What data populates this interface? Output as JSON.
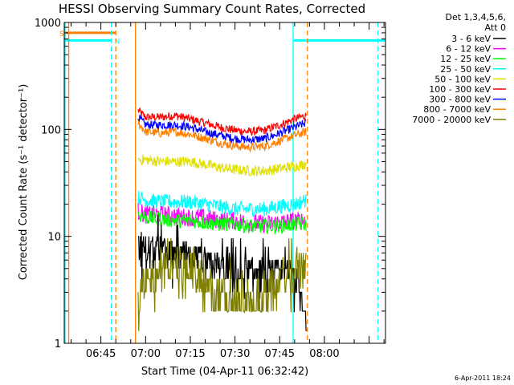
{
  "chart_data": {
    "type": "line",
    "title": "HESSI Observing Summary Count Rates, Corrected",
    "xlabel": "Start Time (04-Apr-11 06:32:42)",
    "ylabel": "Corrected Count Rate (s⁻¹ detector⁻¹)",
    "y_scale": "log",
    "ylim": [
      1,
      1000
    ],
    "y_ticks": [
      1,
      10,
      100,
      1000
    ],
    "y_tick_labels": [
      "1",
      "10",
      "100",
      "1000"
    ],
    "x_ticks_min": [
      45,
      60,
      75,
      90,
      105,
      120
    ],
    "x_tick_labels": [
      "06:45",
      "07:00",
      "07:15",
      "07:30",
      "07:45",
      "08:00"
    ],
    "xlim_min": [
      32.7,
      140.5
    ],
    "grid": false,
    "legend": {
      "placement": "right",
      "header": [
        "Det 1,3,4,5,6,",
        "Att 0"
      ],
      "entries": [
        {
          "name": "3 - 6 keV",
          "color": "#000000"
        },
        {
          "name": "6 - 12 keV",
          "color": "#ff00ff"
        },
        {
          "name": "12 - 25 keV",
          "color": "#00ff00"
        },
        {
          "name": "25 - 50 keV",
          "color": "#00ffff"
        },
        {
          "name": "50 - 100 keV",
          "color": "#e0e000"
        },
        {
          "name": "100 - 300 keV",
          "color": "#ff0000"
        },
        {
          "name": "300 - 800 keV",
          "color": "#0000ff"
        },
        {
          "name": "800 - 7000 keV",
          "color": "#ff8000"
        },
        {
          "name": "7000 - 20000 keV",
          "color": "#808000"
        }
      ]
    },
    "series": [
      {
        "name": "100 - 300 keV",
        "color": "#ff0000",
        "x": [
          57.5,
          60,
          65,
          70,
          75,
          80,
          85,
          90,
          95,
          100,
          105,
          110,
          114
        ],
        "y": [
          150,
          130,
          130,
          135,
          125,
          115,
          105,
          98,
          95,
          98,
          110,
          125,
          135
        ],
        "noise": 0.08
      },
      {
        "name": "300 - 800 keV",
        "color": "#0000ff",
        "x": [
          57.5,
          60,
          65,
          70,
          75,
          80,
          85,
          90,
          95,
          100,
          105,
          110,
          114
        ],
        "y": [
          130,
          110,
          110,
          110,
          105,
          95,
          88,
          82,
          80,
          82,
          92,
          105,
          115
        ],
        "noise": 0.08
      },
      {
        "name": "800 - 7000 keV",
        "color": "#ff8000",
        "x": [
          57.5,
          60,
          65,
          70,
          75,
          80,
          85,
          90,
          95,
          100,
          105,
          110,
          114
        ],
        "y": [
          115,
          95,
          92,
          95,
          90,
          82,
          75,
          70,
          68,
          70,
          78,
          88,
          95
        ],
        "noise": 0.08
      },
      {
        "name": "50 - 100 keV",
        "color": "#e0e000",
        "x": [
          57.5,
          60,
          65,
          70,
          75,
          80,
          85,
          90,
          95,
          100,
          105,
          110,
          114
        ],
        "y": [
          52,
          52,
          50,
          50,
          50,
          47,
          44,
          42,
          41,
          41,
          43,
          45,
          48
        ],
        "noise": 0.1
      },
      {
        "name": "25 - 50 keV",
        "color": "#00ffff",
        "x": [
          57.5,
          60,
          65,
          70,
          75,
          80,
          85,
          90,
          95,
          100,
          105,
          110,
          114
        ],
        "y": [
          23,
          22,
          21,
          21,
          21,
          20,
          19,
          18,
          18,
          18,
          19,
          20,
          22
        ],
        "noise": 0.14
      },
      {
        "name": "6 - 12 keV",
        "color": "#ff00ff",
        "x": [
          57.5,
          60,
          65,
          70,
          75,
          80,
          85,
          90,
          95,
          100,
          105,
          110,
          114
        ],
        "y": [
          17,
          16,
          16,
          15.5,
          15,
          15,
          14,
          14,
          13.5,
          13,
          13.5,
          14,
          14
        ],
        "noise": 0.17
      },
      {
        "name": "12 - 25 keV",
        "color": "#00ff00",
        "x": [
          57.5,
          60,
          65,
          70,
          75,
          80,
          85,
          90,
          95,
          100,
          105,
          110,
          114
        ],
        "y": [
          16,
          15,
          14.5,
          14,
          14,
          13.5,
          13,
          13,
          12.5,
          12.5,
          12.5,
          13,
          13
        ],
        "noise": 0.14
      },
      {
        "name": "3 - 6 keV",
        "color": "#000000",
        "x": [
          57.5,
          60,
          65,
          70,
          75,
          80,
          85,
          90,
          95,
          100,
          105,
          110,
          112,
          114
        ],
        "y": [
          8,
          7.5,
          7,
          6.5,
          6,
          5.5,
          5,
          4.5,
          4.5,
          4.5,
          4.5,
          4.5,
          3,
          2
        ],
        "noise": 0.3
      },
      {
        "name": "7000 - 20000 keV",
        "color": "#808000",
        "x": [
          57.5,
          60,
          65,
          70,
          75,
          80,
          85,
          90,
          95,
          100,
          105,
          110,
          114
        ],
        "y": [
          2.5,
          3.5,
          5,
          5.5,
          5,
          3.5,
          2.8,
          2.5,
          2.5,
          2.8,
          3.5,
          4.5,
          5.5
        ],
        "noise": 0.35
      }
    ],
    "flag_bars": [
      {
        "label": "S",
        "color": "#ff8000",
        "x_min": [
          32.7,
          50
        ],
        "y": 800
      },
      {
        "label": "N",
        "color": "#00ffff",
        "x_min": [
          32.7,
          48.5
        ],
        "y": 680
      },
      {
        "label": "",
        "color": "#00ffff",
        "x_min": [
          109.5,
          140.5
        ],
        "y": 680
      }
    ],
    "vlines": [
      {
        "x_min": 33.0,
        "color": "#00ffff",
        "style": "solid"
      },
      {
        "x_min": 34.2,
        "color": "#ff8000",
        "style": "solid"
      },
      {
        "x_min": 48.5,
        "color": "#00ffff",
        "style": "dashed"
      },
      {
        "x_min": 50.0,
        "color": "#ff8000",
        "style": "dashed"
      },
      {
        "x_min": 56.6,
        "color": "#ff8000",
        "style": "solid"
      },
      {
        "x_min": 109.5,
        "color": "#00ffff",
        "style": "solid"
      },
      {
        "x_min": 114.3,
        "color": "#ff8000",
        "style": "dashed"
      },
      {
        "x_min": 138.0,
        "color": "#00ffff",
        "style": "dashed"
      }
    ]
  },
  "timestamp": "6-Apr-2011 18:24"
}
